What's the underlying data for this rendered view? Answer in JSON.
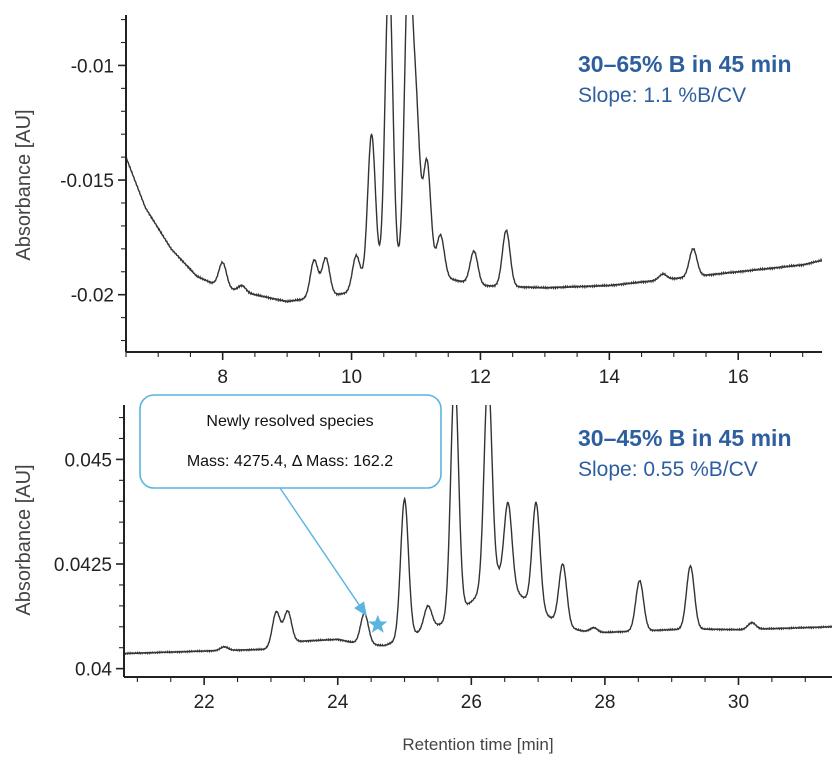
{
  "colors": {
    "trace": "#333333",
    "axis": "#222222",
    "condition_text": "#2d5f9e",
    "callout": "#5ab4e0"
  },
  "chart_data": [
    {
      "type": "line",
      "ylabel": "Absorbance [AU]",
      "xlabel": "",
      "xlim": [
        6.5,
        17.3
      ],
      "ylim": [
        -0.0225,
        -0.0078
      ],
      "x_ticks": [
        8,
        10,
        12,
        14,
        16
      ],
      "y_ticks": [
        -0.01,
        -0.015,
        -0.02
      ],
      "y_tick_labels": [
        "-0.01",
        "-0.015",
        "-0.02"
      ],
      "condition": "30–65% B in 45 min",
      "slope": "Slope: 1.1 %B/CV",
      "series": [
        {
          "baseline": [
            [
              6.5,
              -0.014
            ],
            [
              6.8,
              -0.0162
            ],
            [
              7.2,
              -0.018
            ],
            [
              7.6,
              -0.0192
            ],
            [
              8.0,
              -0.0197
            ],
            [
              8.5,
              -0.02
            ],
            [
              9.0,
              -0.0203
            ],
            [
              9.5,
              -0.0201
            ],
            [
              10.0,
              -0.0199
            ],
            [
              10.3,
              -0.0193
            ],
            [
              10.6,
              -0.019
            ],
            [
              11.0,
              -0.0189
            ],
            [
              11.5,
              -0.0193
            ],
            [
              12.0,
              -0.0196
            ],
            [
              13.0,
              -0.0197
            ],
            [
              14.0,
              -0.0196
            ],
            [
              15.0,
              -0.0193
            ],
            [
              16.0,
              -0.019
            ],
            [
              17.0,
              -0.0187
            ],
            [
              17.3,
              -0.0185
            ]
          ],
          "peaks": [
            {
              "x": 8.0,
              "y": -0.0186
            },
            {
              "x": 8.3,
              "y": -0.0196
            },
            {
              "x": 9.42,
              "y": -0.0185
            },
            {
              "x": 9.6,
              "y": -0.0184
            },
            {
              "x": 10.07,
              "y": -0.0183
            },
            {
              "x": 10.31,
              "y": -0.013
            },
            {
              "x": 10.58,
              "y": -0.006
            },
            {
              "x": 10.88,
              "y": -0.006
            },
            {
              "x": 11.0,
              "y": -0.0123
            },
            {
              "x": 11.17,
              "y": -0.0142
            },
            {
              "x": 11.38,
              "y": -0.0174
            },
            {
              "x": 11.9,
              "y": -0.0181
            },
            {
              "x": 12.4,
              "y": -0.0172
            },
            {
              "x": 14.83,
              "y": -0.0191
            },
            {
              "x": 15.3,
              "y": -0.018
            }
          ]
        }
      ]
    },
    {
      "type": "line",
      "ylabel": "Absorbance [AU]",
      "xlabel": "Retention time [min]",
      "xlim": [
        20.8,
        31.4
      ],
      "ylim": [
        0.0398,
        0.0463
      ],
      "x_ticks": [
        22,
        24,
        26,
        28,
        30
      ],
      "y_ticks": [
        0.045,
        0.0425,
        0.04
      ],
      "y_tick_labels": [
        "0.045",
        "0.0425",
        "0.04"
      ],
      "condition": "30–45% B in 45 min",
      "slope": "Slope: 0.55 %B/CV",
      "annotation": {
        "title": "Newly resolved species",
        "detail": "Mass: 4275.4, Δ Mass: 162.2",
        "x": 24.6,
        "y": 0.04105
      },
      "series": [
        {
          "baseline": [
            [
              20.8,
              0.04036
            ],
            [
              22.0,
              0.04042
            ],
            [
              22.9,
              0.04046
            ],
            [
              23.4,
              0.04065
            ],
            [
              24.0,
              0.0407
            ],
            [
              24.3,
              0.0406
            ],
            [
              24.7,
              0.04055
            ],
            [
              25.2,
              0.04085
            ],
            [
              25.6,
              0.0411
            ],
            [
              26.0,
              0.0416
            ],
            [
              26.4,
              0.0422
            ],
            [
              26.7,
              0.0418
            ],
            [
              27.0,
              0.0414
            ],
            [
              27.4,
              0.041
            ],
            [
              27.8,
              0.04085
            ],
            [
              28.5,
              0.0409
            ],
            [
              29.3,
              0.04095
            ],
            [
              30.0,
              0.04093
            ],
            [
              31.4,
              0.041
            ]
          ],
          "peaks": [
            {
              "x": 22.3,
              "y": 0.04052
            },
            {
              "x": 23.08,
              "y": 0.04135
            },
            {
              "x": 23.25,
              "y": 0.04137
            },
            {
              "x": 24.4,
              "y": 0.04132
            },
            {
              "x": 25.0,
              "y": 0.04405
            },
            {
              "x": 25.35,
              "y": 0.0415
            },
            {
              "x": 25.75,
              "y": 0.047
            },
            {
              "x": 26.25,
              "y": 0.047
            },
            {
              "x": 26.55,
              "y": 0.04397
            },
            {
              "x": 26.97,
              "y": 0.04397
            },
            {
              "x": 27.37,
              "y": 0.0425
            },
            {
              "x": 27.83,
              "y": 0.04098
            },
            {
              "x": 28.52,
              "y": 0.0421
            },
            {
              "x": 29.28,
              "y": 0.04245
            },
            {
              "x": 30.2,
              "y": 0.0411
            }
          ]
        }
      ]
    }
  ]
}
